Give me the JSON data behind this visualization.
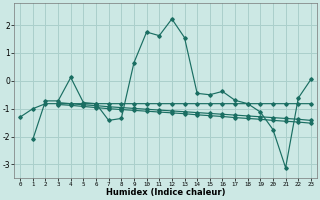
{
  "xlabel": "Humidex (Indice chaleur)",
  "xlim": [
    -0.5,
    23.5
  ],
  "ylim": [
    -3.5,
    2.8
  ],
  "yticks": [
    -3,
    -2,
    -1,
    0,
    1,
    2
  ],
  "xticks": [
    0,
    1,
    2,
    3,
    4,
    5,
    6,
    7,
    8,
    9,
    10,
    11,
    12,
    13,
    14,
    15,
    16,
    17,
    18,
    19,
    20,
    21,
    22,
    23
  ],
  "bg_color": "#cce8e4",
  "grid_color": "#aacfcb",
  "line_color": "#1a6e62",
  "series": [
    [
      null,
      -2.1,
      -0.72,
      -0.72,
      0.12,
      -0.78,
      -0.82,
      -1.42,
      -1.35,
      0.65,
      1.75,
      1.62,
      2.22,
      1.55,
      -0.45,
      -0.5,
      -0.38,
      -0.7,
      -0.82,
      -1.12,
      -1.75,
      -3.12,
      -0.62,
      0.05
    ],
    [
      -1.3,
      -1.0,
      -0.82,
      -0.82,
      -0.82,
      -0.82,
      -0.82,
      -0.82,
      -0.82,
      -0.82,
      -0.82,
      -0.82,
      -0.82,
      -0.82,
      -0.82,
      -0.82,
      -0.82,
      -0.82,
      -0.82,
      -0.82,
      -0.82,
      -0.82,
      -0.82,
      -0.82
    ],
    [
      null,
      null,
      null,
      -0.85,
      -0.88,
      -0.92,
      -0.96,
      -1.0,
      -1.03,
      -1.06,
      -1.09,
      -1.12,
      -1.15,
      -1.18,
      -1.22,
      -1.25,
      -1.28,
      -1.32,
      -1.35,
      -1.38,
      -1.42,
      -1.45,
      -1.48,
      -1.52
    ],
    [
      null,
      null,
      null,
      -0.78,
      -0.82,
      -0.86,
      -0.89,
      -0.93,
      -0.96,
      -0.99,
      -1.02,
      -1.05,
      -1.08,
      -1.11,
      -1.14,
      -1.17,
      -1.2,
      -1.23,
      -1.26,
      -1.29,
      -1.32,
      -1.35,
      -1.38,
      -1.42
    ]
  ]
}
